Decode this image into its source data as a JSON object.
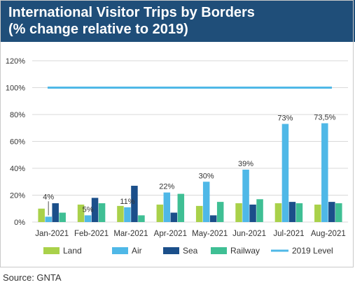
{
  "header": {
    "title_line1": "International Visitor Trips by Borders",
    "title_line2": "(% change relative to 2019)"
  },
  "source": "Source:  GNTA",
  "colors": {
    "title_bg": "#1f4e79",
    "land": "#a9d14a",
    "air": "#4fb8e7",
    "sea": "#1b4f8a",
    "railway": "#3fbf94",
    "level_2019": "#4fb8e7"
  },
  "chart_data": {
    "type": "bar",
    "categories": [
      "Jan-2021",
      "Feb-2021",
      "Mar-2021",
      "Apr-2021",
      "May-2021",
      "Jun-2021",
      "Jul-2021",
      "Aug-2021"
    ],
    "series": [
      {
        "name": "Land",
        "values": [
          10,
          13,
          12,
          13,
          12,
          14,
          14,
          13
        ]
      },
      {
        "name": "Air",
        "values": [
          4,
          5,
          11,
          22,
          30,
          39,
          73,
          73.5
        ]
      },
      {
        "name": "Sea",
        "values": [
          14,
          18,
          27,
          7,
          5,
          13,
          15,
          15
        ]
      },
      {
        "name": "Railway",
        "values": [
          7,
          14,
          5,
          21,
          15,
          17,
          14,
          14
        ]
      }
    ],
    "reference_line": {
      "name": "2019 Level",
      "value": 100
    },
    "air_labels": [
      "4%",
      "5%",
      "11%",
      "22%",
      "30%",
      "39%",
      "73%",
      "73,5%"
    ],
    "y_ticks": [
      "0%",
      "20%",
      "40%",
      "60%",
      "80%",
      "100%",
      "120%"
    ],
    "ylim": [
      0,
      120
    ],
    "grid": true,
    "legend_position": "bottom"
  }
}
